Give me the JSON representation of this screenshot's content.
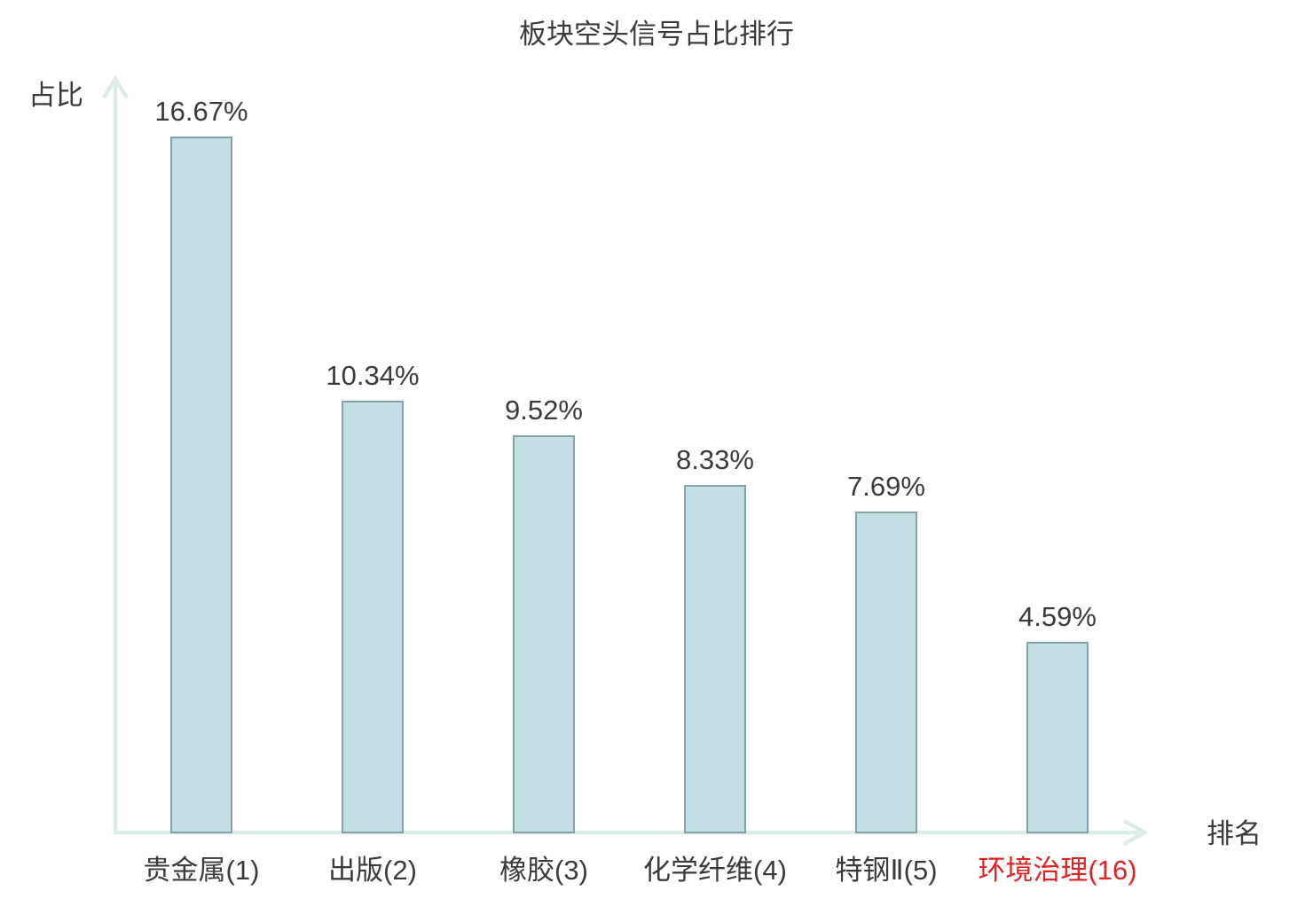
{
  "page": {
    "background": "#ffffff",
    "text_color": "#3a3a3a"
  },
  "chart_data": {
    "type": "bar",
    "title": "板块空头信号占比排行",
    "xlabel": "排名",
    "ylabel": "占比",
    "categories": [
      "贵金属(1)",
      "出版(2)",
      "橡胶(3)",
      "化学纤维(4)",
      "特钢Ⅱ(5)",
      "环境治理(16)"
    ],
    "values": [
      16.67,
      10.34,
      9.52,
      8.33,
      7.69,
      4.59
    ],
    "value_labels": [
      "16.67%",
      "10.34%",
      "9.52%",
      "8.33%",
      "7.69%",
      "4.59%"
    ],
    "category_colors": [
      "#3a3a3a",
      "#3a3a3a",
      "#3a3a3a",
      "#3a3a3a",
      "#3a3a3a",
      "#e02222"
    ],
    "highlighted_category_index": 5,
    "highlight_color": "#e02222",
    "bar_fill": "#c2e0e3",
    "bar_border": "#84a0a8",
    "axis_color": "#dcebe7",
    "text_color": "#3a3a3a",
    "ylim": [
      0,
      17.8
    ],
    "grid": false,
    "legend": null
  }
}
